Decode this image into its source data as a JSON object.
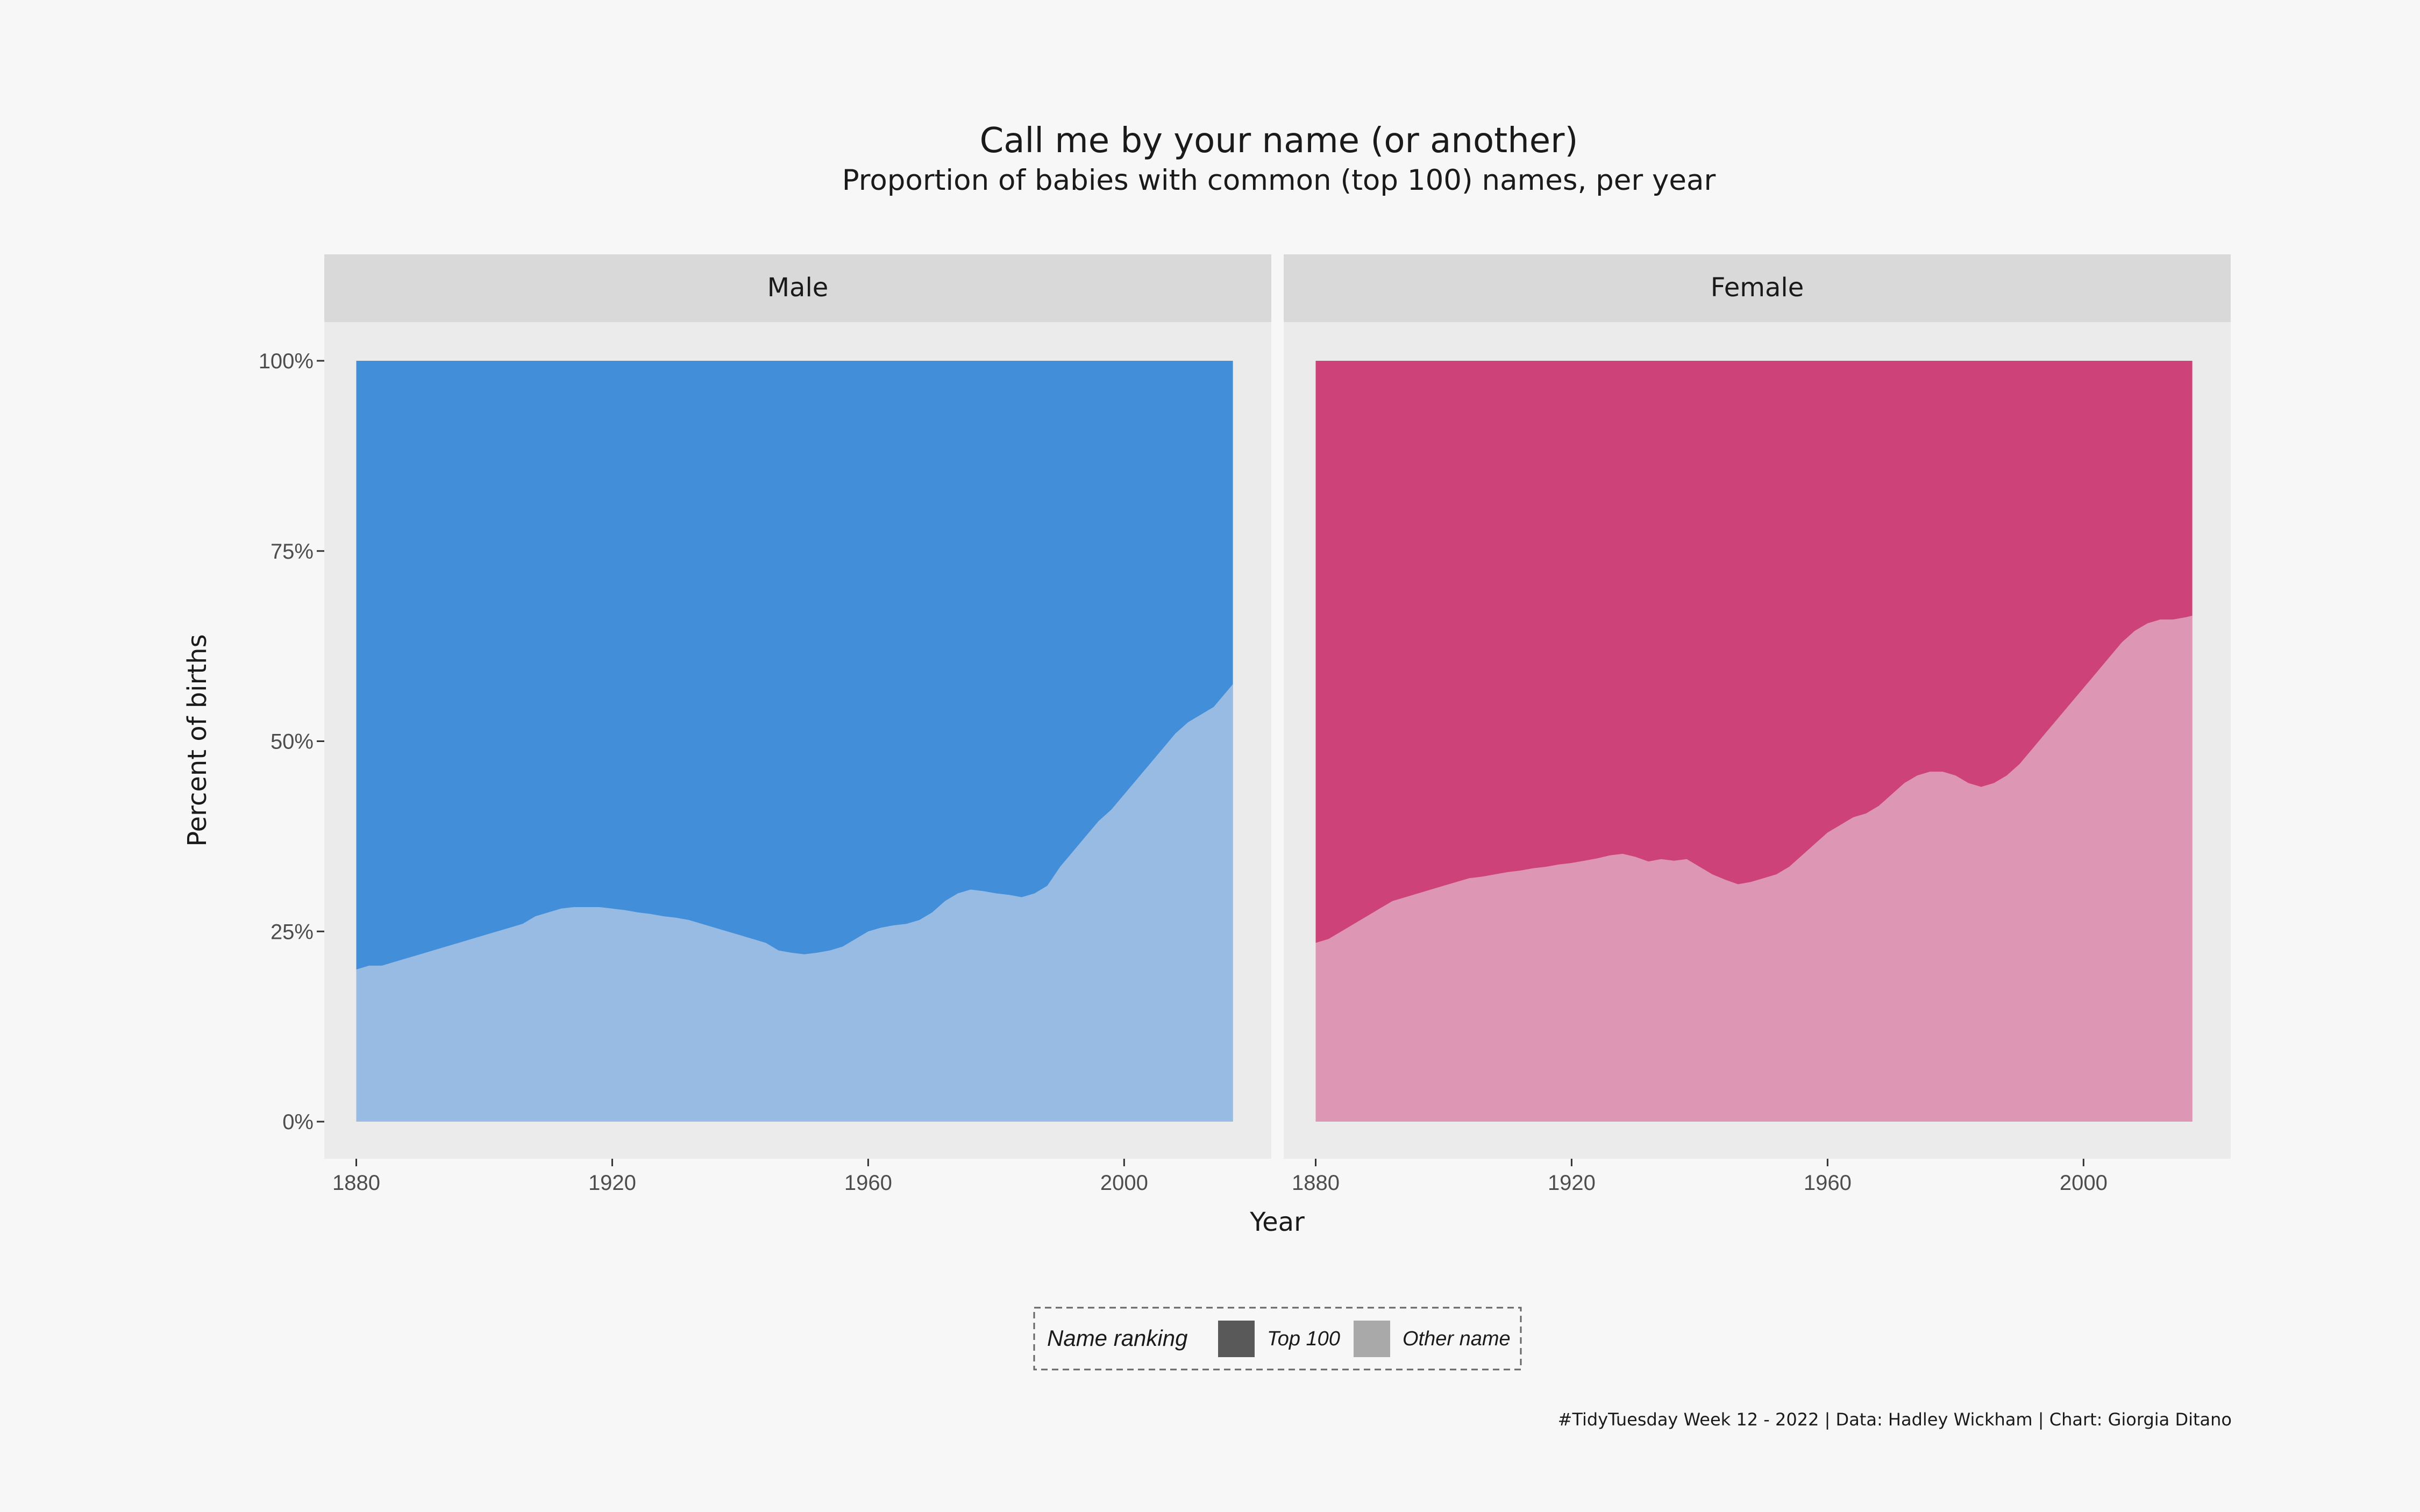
{
  "chart_data": {
    "type": "area",
    "title": "Call me by your name (or another)",
    "subtitle": "Proportion of babies with common (top 100) names, per year",
    "xlabel": "Year",
    "ylabel": "Percent of births",
    "xlim": [
      1875,
      2023
    ],
    "ylim": [
      -0.05,
      1.05
    ],
    "x_ticks": [
      1880,
      1920,
      1960,
      2000
    ],
    "y_ticks": [
      0,
      0.25,
      0.5,
      0.75,
      1.0
    ],
    "y_tick_labels": [
      "0%",
      "25%",
      "50%",
      "75%",
      "100%"
    ],
    "stacked_to": 1.0,
    "legend": {
      "title": "Name ranking",
      "position": "bottom",
      "entries": [
        {
          "label": "Top 100",
          "color": "#595959"
        },
        {
          "label": "Other name",
          "color": "#a9a9a9"
        }
      ]
    },
    "panels": [
      {
        "label": "Male",
        "top100_color": "#438ed8",
        "other_color": "#97bbe2",
        "x": [
          1880,
          1882,
          1884,
          1886,
          1888,
          1890,
          1892,
          1894,
          1896,
          1898,
          1900,
          1902,
          1904,
          1906,
          1908,
          1910,
          1912,
          1914,
          1916,
          1918,
          1920,
          1922,
          1924,
          1926,
          1928,
          1930,
          1932,
          1934,
          1936,
          1938,
          1940,
          1942,
          1944,
          1946,
          1948,
          1950,
          1952,
          1954,
          1956,
          1958,
          1960,
          1962,
          1964,
          1966,
          1968,
          1970,
          1972,
          1974,
          1976,
          1978,
          1980,
          1982,
          1984,
          1986,
          1988,
          1990,
          1992,
          1994,
          1996,
          1998,
          2000,
          2002,
          2004,
          2006,
          2008,
          2010,
          2012,
          2014,
          2016,
          2017
        ],
        "other_name_share": [
          0.2,
          0.205,
          0.205,
          0.21,
          0.215,
          0.22,
          0.225,
          0.23,
          0.235,
          0.24,
          0.245,
          0.25,
          0.255,
          0.26,
          0.27,
          0.275,
          0.28,
          0.282,
          0.282,
          0.282,
          0.28,
          0.278,
          0.275,
          0.273,
          0.27,
          0.268,
          0.265,
          0.26,
          0.255,
          0.25,
          0.245,
          0.24,
          0.235,
          0.225,
          0.222,
          0.22,
          0.222,
          0.225,
          0.23,
          0.24,
          0.25,
          0.255,
          0.258,
          0.26,
          0.265,
          0.275,
          0.29,
          0.3,
          0.305,
          0.303,
          0.3,
          0.298,
          0.295,
          0.3,
          0.31,
          0.335,
          0.355,
          0.375,
          0.395,
          0.41,
          0.43,
          0.45,
          0.47,
          0.49,
          0.51,
          0.525,
          0.535,
          0.545,
          0.565,
          0.575
        ]
      },
      {
        "label": "Female",
        "top100_color": "#cc4279",
        "other_color": "#dd96b3",
        "x": [
          1880,
          1882,
          1884,
          1886,
          1888,
          1890,
          1892,
          1894,
          1896,
          1898,
          1900,
          1902,
          1904,
          1906,
          1908,
          1910,
          1912,
          1914,
          1916,
          1918,
          1920,
          1922,
          1924,
          1926,
          1928,
          1930,
          1932,
          1934,
          1936,
          1938,
          1940,
          1942,
          1944,
          1946,
          1948,
          1950,
          1952,
          1954,
          1956,
          1958,
          1960,
          1962,
          1964,
          1966,
          1968,
          1970,
          1972,
          1974,
          1976,
          1978,
          1980,
          1982,
          1984,
          1986,
          1988,
          1990,
          1992,
          1994,
          1996,
          1998,
          2000,
          2002,
          2004,
          2006,
          2008,
          2010,
          2012,
          2014,
          2016,
          2017
        ],
        "other_name_share": [
          0.235,
          0.24,
          0.25,
          0.26,
          0.27,
          0.28,
          0.29,
          0.295,
          0.3,
          0.305,
          0.31,
          0.315,
          0.32,
          0.322,
          0.325,
          0.328,
          0.33,
          0.333,
          0.335,
          0.338,
          0.34,
          0.343,
          0.346,
          0.35,
          0.352,
          0.348,
          0.342,
          0.345,
          0.343,
          0.345,
          0.335,
          0.325,
          0.318,
          0.312,
          0.315,
          0.32,
          0.325,
          0.335,
          0.35,
          0.365,
          0.38,
          0.39,
          0.4,
          0.405,
          0.415,
          0.43,
          0.445,
          0.455,
          0.46,
          0.46,
          0.455,
          0.445,
          0.44,
          0.445,
          0.455,
          0.47,
          0.49,
          0.51,
          0.53,
          0.55,
          0.57,
          0.59,
          0.61,
          0.63,
          0.645,
          0.655,
          0.66,
          0.66,
          0.663,
          0.665
        ]
      }
    ]
  },
  "caption": "#TidyTuesday Week 12 - 2022 | Data: Hadley Wickham | Chart: Giorgia Ditano"
}
